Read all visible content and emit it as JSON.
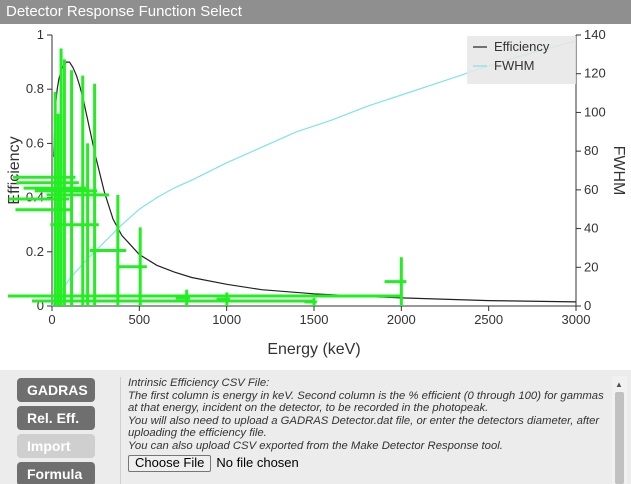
{
  "window": {
    "title": "Detector Response Function Select"
  },
  "chart_data": {
    "type": "line",
    "xlabel": "Energy (keV)",
    "ylabel": "Efficiency",
    "y2label": "FWHM",
    "xlim": [
      0,
      3000
    ],
    "ylim": [
      0,
      1
    ],
    "y2lim": [
      0,
      140
    ],
    "x_ticks": [
      0,
      500,
      1000,
      1500,
      2000,
      2500,
      3000
    ],
    "y_ticks": [
      0,
      0.2,
      0.4,
      0.6,
      0.8,
      1
    ],
    "y_tick_labels": [
      "0",
      "0.2",
      "0.4",
      "0.6",
      "0.8",
      "1"
    ],
    "y2_ticks": [
      0,
      20,
      40,
      60,
      80,
      100,
      120,
      140
    ],
    "legend_position": "top-right",
    "series": [
      {
        "name": "Efficiency",
        "axis": "left",
        "color": "#222222",
        "x": [
          10,
          20,
          30,
          40,
          50,
          60,
          80,
          100,
          120,
          140,
          160,
          180,
          200,
          250,
          300,
          350,
          400,
          500,
          600,
          700,
          800,
          1000,
          1200,
          1500,
          1800,
          2000,
          2500,
          3000
        ],
        "y": [
          0.55,
          0.74,
          0.8,
          0.84,
          0.86,
          0.88,
          0.9,
          0.9,
          0.88,
          0.85,
          0.81,
          0.76,
          0.7,
          0.55,
          0.42,
          0.32,
          0.26,
          0.19,
          0.15,
          0.125,
          0.105,
          0.08,
          0.06,
          0.045,
          0.035,
          0.03,
          0.02,
          0.015
        ]
      },
      {
        "name": "FWHM",
        "axis": "right",
        "color": "#7fe3e8",
        "x": [
          0,
          100,
          200,
          300,
          400,
          500,
          600,
          700,
          800,
          1000,
          1200,
          1400,
          1600,
          1800,
          2000,
          2200,
          2400,
          2600,
          2800,
          3000
        ],
        "y": [
          0,
          14,
          24,
          33,
          42,
          50,
          56,
          61,
          65,
          74,
          82,
          90,
          96,
          103,
          109,
          115,
          121,
          127,
          132,
          137
        ]
      }
    ],
    "markers": {
      "color": "#22ee22",
      "items": [
        {
          "x": 18,
          "y": 0.79
        },
        {
          "x": 35,
          "y": 0.71
        },
        {
          "x": 52,
          "y": 0.95
        },
        {
          "x": 71,
          "y": 0.91
        },
        {
          "x": 112,
          "y": 0.87
        },
        {
          "x": 176,
          "y": 0.85
        },
        {
          "x": 204,
          "y": 0.6
        },
        {
          "x": 244,
          "y": 0.82
        },
        {
          "x": 377,
          "y": 0.41
        },
        {
          "x": 505,
          "y": 0.29
        },
        {
          "x": 771,
          "y": 0.06
        },
        {
          "x": 1001,
          "y": 0.05
        },
        {
          "x": 1500,
          "y": 0.03
        },
        {
          "x": 2000,
          "y": 0.18
        }
      ]
    }
  },
  "sidebar": {
    "buttons": [
      {
        "label": "GADRAS",
        "state": "normal"
      },
      {
        "label": "Rel. Eff.",
        "state": "normal"
      },
      {
        "label": "Import",
        "state": "disabled"
      },
      {
        "label": "Formula",
        "state": "normal"
      }
    ]
  },
  "import_panel": {
    "heading": "Intrinsic Efficiency CSV File:",
    "lines": [
      "The first column is energy in keV. Second column is the % efficient (0 through 100) for gammas at that energy, incident on the detector, to be recorded in the photopeak.",
      "You will also need to upload a GADRAS Detector.dat file, or enter the detectors diameter, after uploading the efficiency file.",
      "You can also upload CSV exported from the Make Detector Response tool."
    ],
    "file_button": "Choose File",
    "file_status": "No file chosen"
  }
}
